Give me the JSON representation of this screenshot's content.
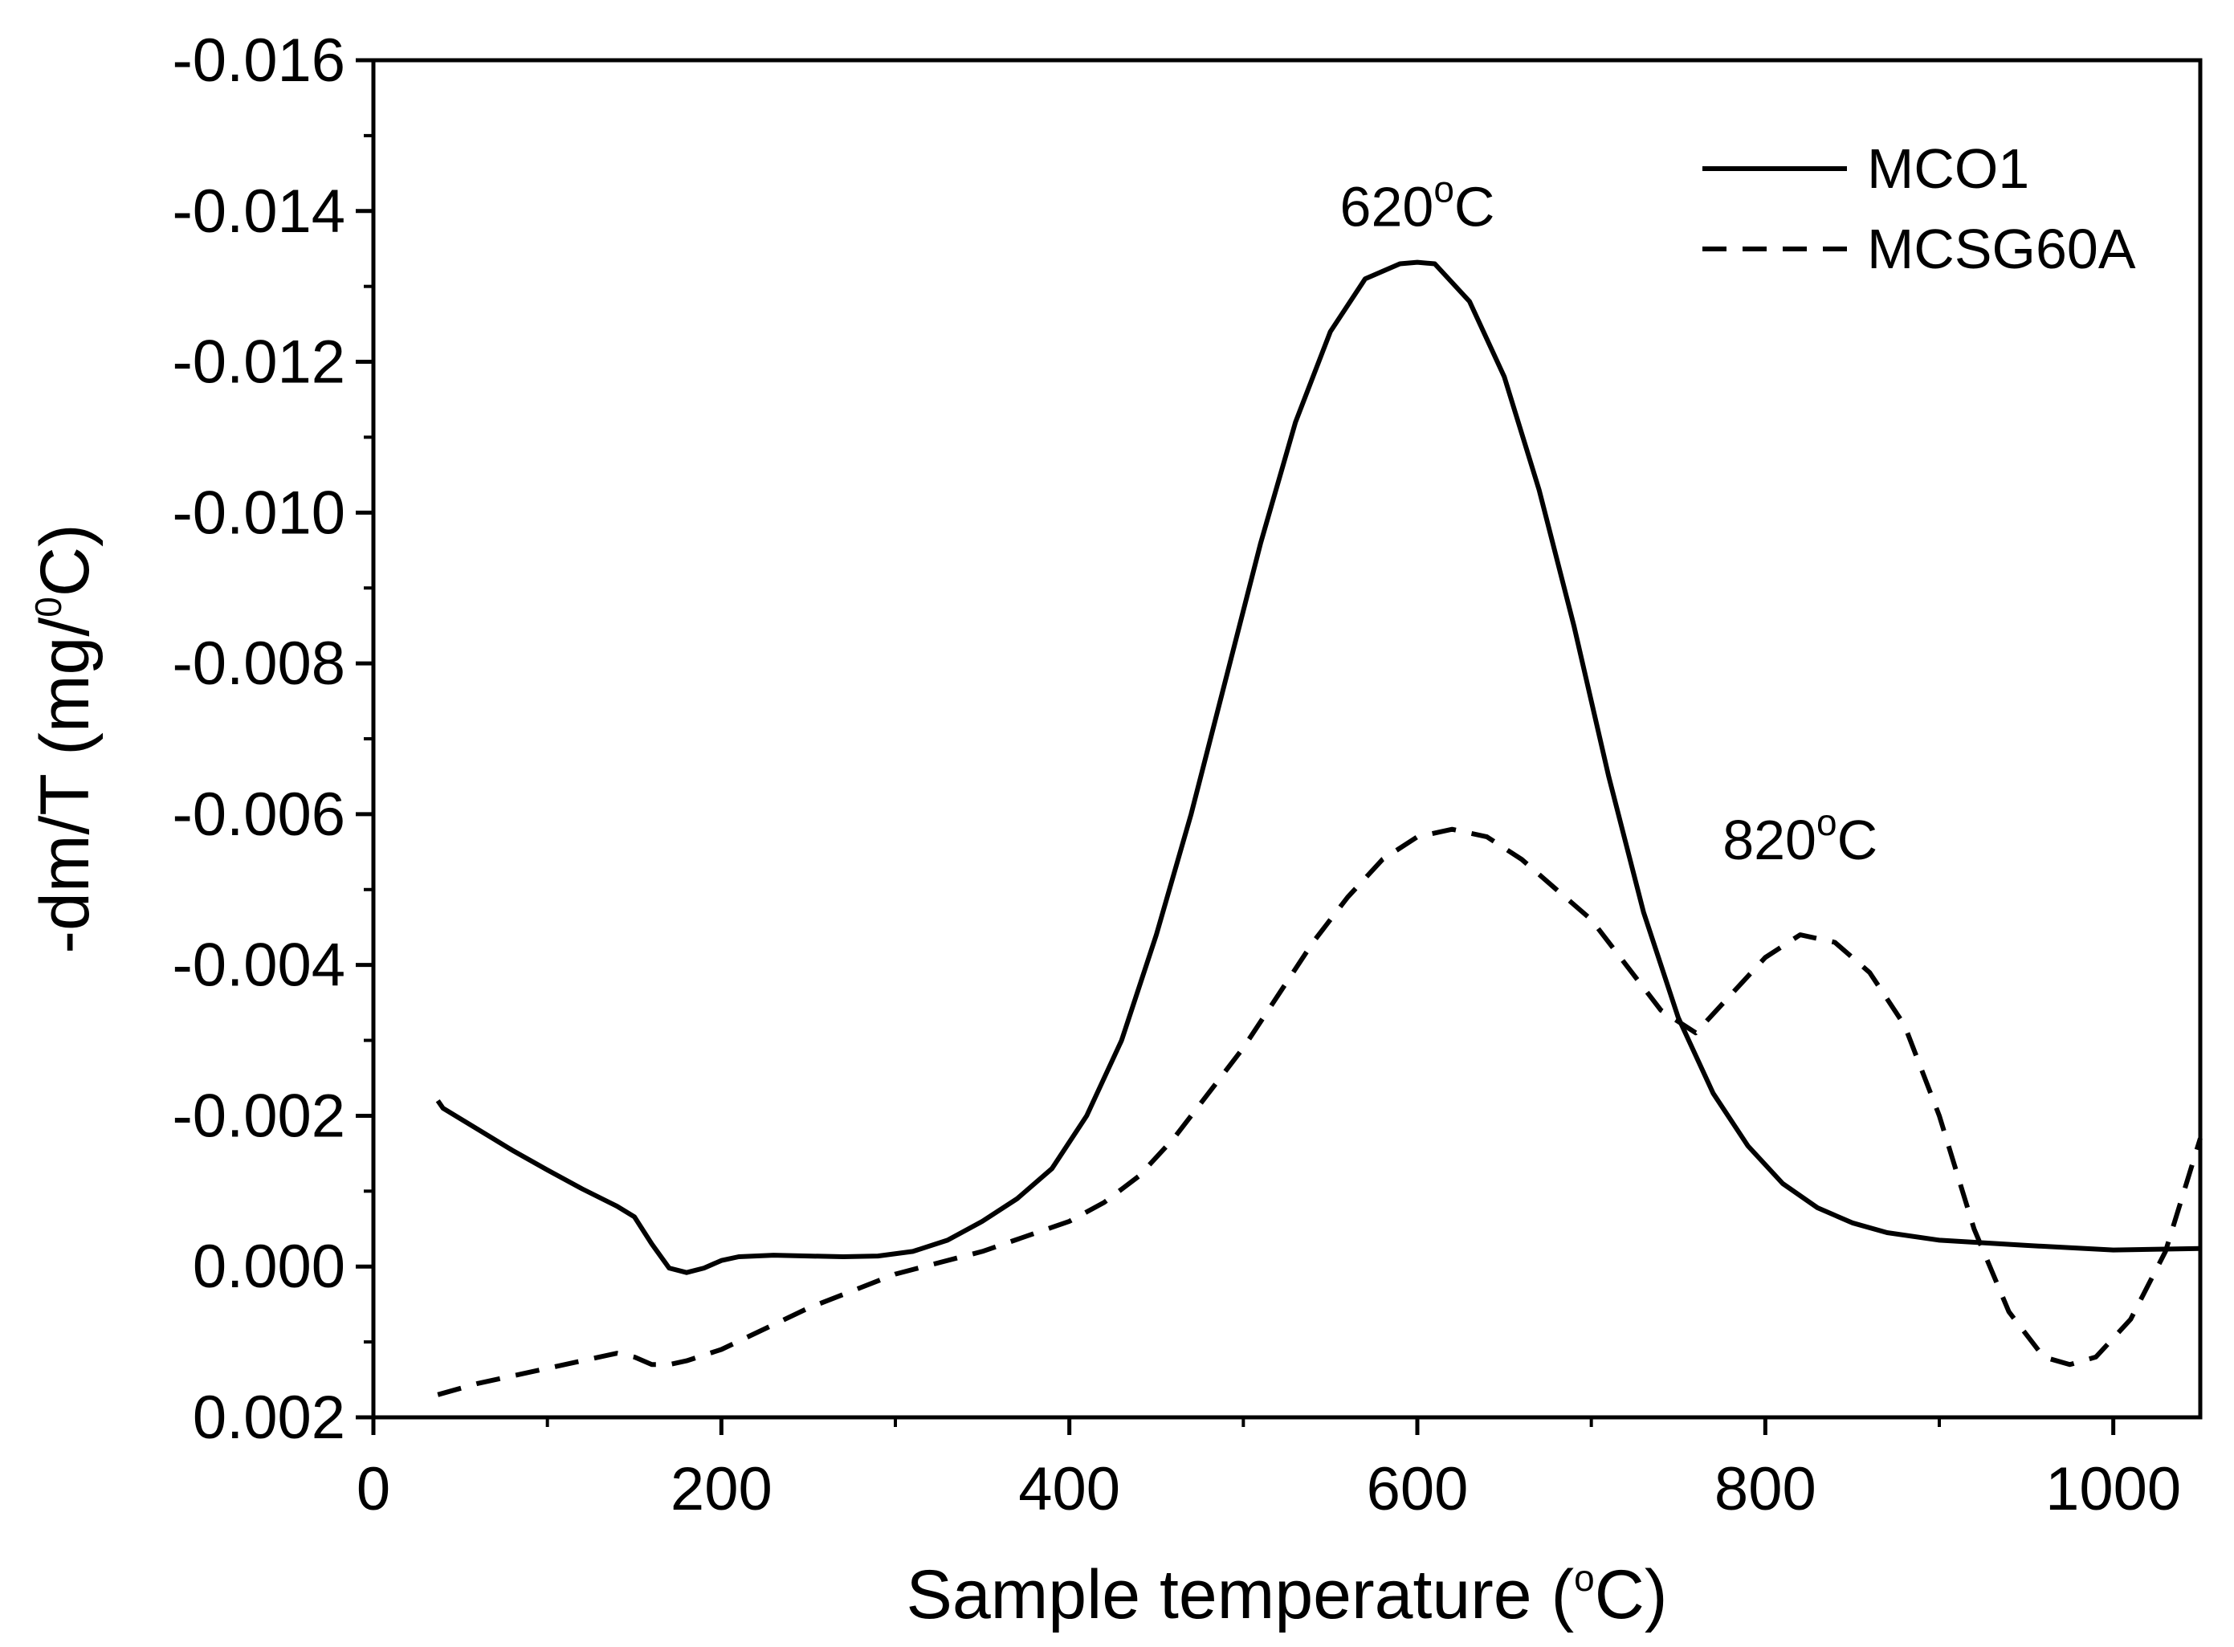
{
  "chart_data": {
    "type": "line",
    "xlabel": {
      "main": "Sample temperature (",
      "sup": "o",
      "tail": "C)"
    },
    "ylabel": {
      "main": "-dm/T (mg/",
      "sup": "0",
      "tail": "C)"
    },
    "xlim": [
      0,
      1050
    ],
    "ylim": [
      0.002,
      -0.016
    ],
    "xticks": [
      0,
      200,
      400,
      600,
      800,
      1000
    ],
    "xtick_labels": [
      "0",
      "200",
      "400",
      "600",
      "800",
      "1000"
    ],
    "yticks": [
      -0.016,
      -0.014,
      -0.012,
      -0.01,
      -0.008,
      -0.006,
      -0.004,
      -0.002,
      0.0,
      0.002
    ],
    "ytick_labels": [
      "-0.016",
      "-0.014",
      "-0.012",
      "-0.010",
      "-0.008",
      "-0.006",
      "-0.004",
      "-0.002",
      "0.000",
      "0.002"
    ],
    "legend_position": "top-right",
    "series": [
      {
        "name": "MCO1",
        "style": "solid",
        "x": [
          37,
          40,
          60,
          80,
          100,
          120,
          140,
          150,
          160,
          170,
          180,
          190,
          200,
          210,
          230,
          250,
          270,
          290,
          310,
          330,
          350,
          370,
          390,
          410,
          430,
          450,
          470,
          490,
          510,
          530,
          550,
          570,
          590,
          600,
          610,
          630,
          650,
          670,
          690,
          710,
          730,
          750,
          770,
          790,
          810,
          830,
          850,
          870,
          900,
          950,
          1000,
          1050
        ],
        "y": [
          -0.0022,
          -0.0021,
          -0.00182,
          -0.00154,
          -0.00128,
          -0.00103,
          -0.0008,
          -0.00066,
          -0.0003,
          2e-05,
          8e-05,
          2e-05,
          -8e-05,
          -0.00013,
          -0.00015,
          -0.00014,
          -0.00013,
          -0.00014,
          -0.0002,
          -0.00035,
          -0.0006,
          -0.0009,
          -0.0013,
          -0.002,
          -0.003,
          -0.0044,
          -0.006,
          -0.0078,
          -0.0096,
          -0.0112,
          -0.0124,
          -0.0131,
          -0.0133,
          -0.01332,
          -0.0133,
          -0.0128,
          -0.0118,
          -0.0103,
          -0.0085,
          -0.0065,
          -0.0047,
          -0.0033,
          -0.0023,
          -0.0016,
          -0.0011,
          -0.00078,
          -0.00058,
          -0.00045,
          -0.00035,
          -0.00028,
          -0.00022,
          -0.00024
        ]
      },
      {
        "name": "MCSG60A",
        "style": "dashed",
        "x": [
          37,
          60,
          80,
          100,
          120,
          140,
          150,
          160,
          170,
          180,
          200,
          250,
          300,
          350,
          400,
          420,
          440,
          460,
          480,
          500,
          520,
          540,
          560,
          580,
          600,
          620,
          640,
          660,
          680,
          700,
          720,
          740,
          760,
          780,
          800,
          820,
          840,
          860,
          880,
          900,
          920,
          940,
          960,
          975,
          990,
          1010,
          1030,
          1050
        ],
        "y": [
          0.0017,
          0.00155,
          0.00145,
          0.00135,
          0.00125,
          0.00115,
          0.0012,
          0.0013,
          0.0013,
          0.00125,
          0.0011,
          0.00055,
          0.0001,
          -0.0002,
          -0.0006,
          -0.00085,
          -0.0012,
          -0.0017,
          -0.0023,
          -0.0029,
          -0.0036,
          -0.0043,
          -0.0049,
          -0.0054,
          -0.0057,
          -0.0058,
          -0.0057,
          -0.0054,
          -0.005,
          -0.0046,
          -0.004,
          -0.0034,
          -0.0031,
          -0.0036,
          -0.0041,
          -0.0044,
          -0.0043,
          -0.0039,
          -0.0032,
          -0.002,
          -0.0005,
          0.0006,
          0.0012,
          0.0013,
          0.0012,
          0.0007,
          -0.0002,
          -0.0017
        ]
      }
    ],
    "annotations": [
      {
        "text": "620",
        "sup": "o",
        "tail": "C",
        "x": 600,
        "y": -0.0138
      },
      {
        "text": "820",
        "sup": "o",
        "tail": "C",
        "x": 820,
        "y": -0.0054
      }
    ]
  }
}
